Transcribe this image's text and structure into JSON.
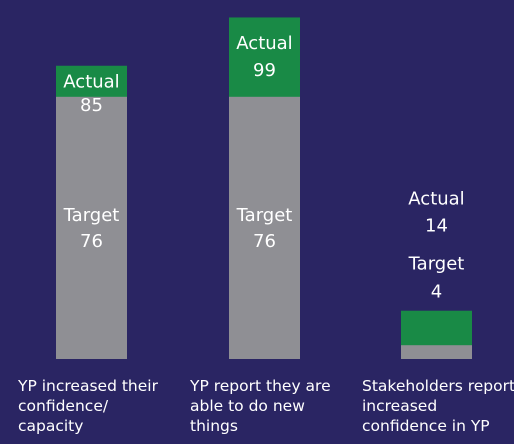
{
  "chart_data": {
    "type": "bar",
    "categories": [
      "YP increased their confidence/ capacity",
      "YP report they are able to do new things",
      "Stakeholders report increased confidence in YP"
    ],
    "series": [
      {
        "name": "Actual",
        "color": "#198a46",
        "values": [
          85,
          99,
          14
        ]
      },
      {
        "name": "Target",
        "color": "#8f8f94",
        "values": [
          76,
          76,
          4
        ]
      }
    ]
  }
}
